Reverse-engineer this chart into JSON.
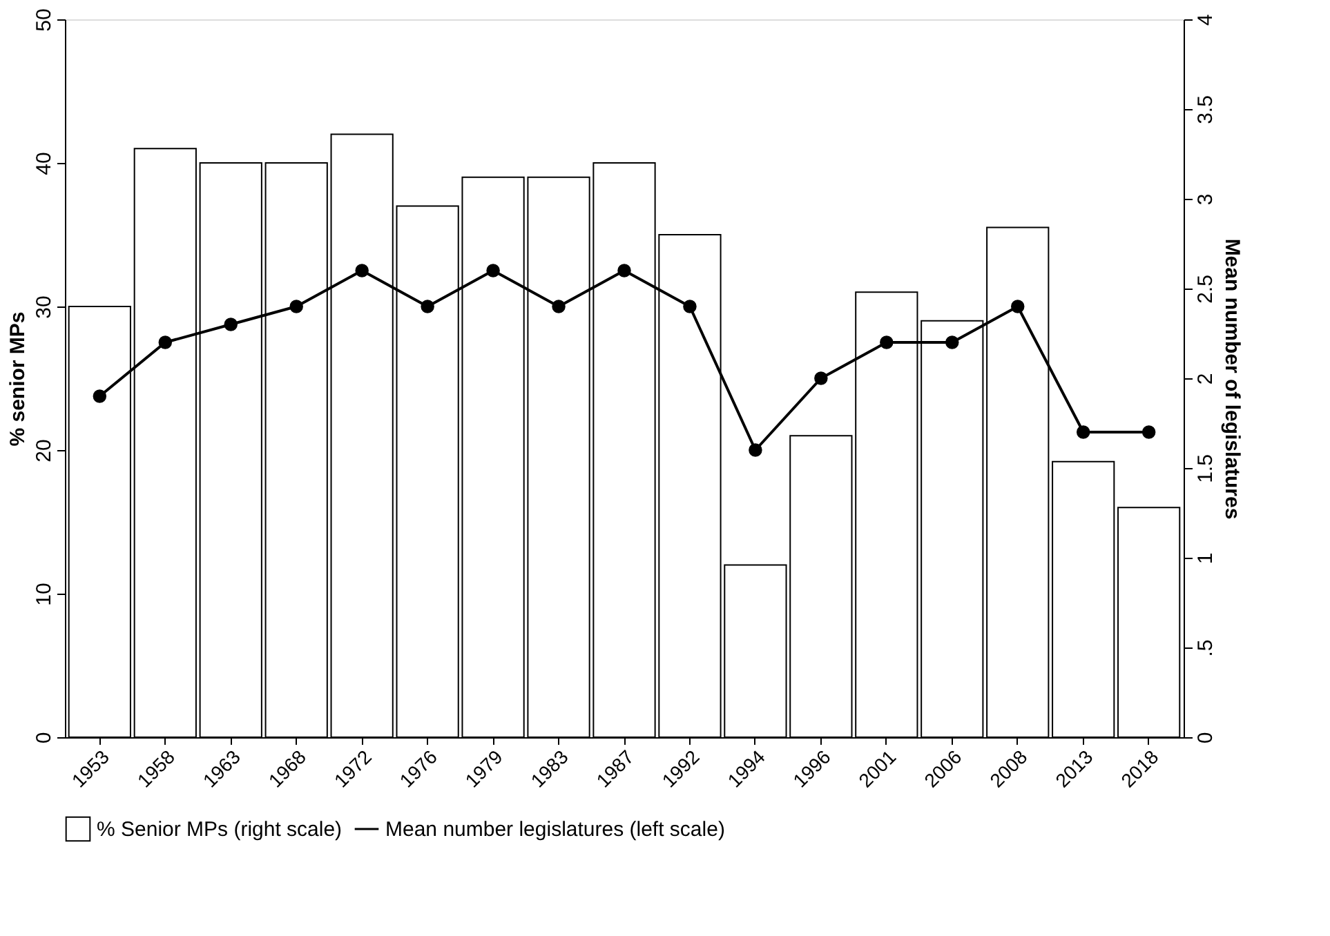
{
  "chart_data": {
    "type": "bar",
    "categories": [
      "1953",
      "1958",
      "1963",
      "1968",
      "1972",
      "1976",
      "1979",
      "1983",
      "1987",
      "1992",
      "1994",
      "1996",
      "2001",
      "2006",
      "2008",
      "2013",
      "2018"
    ],
    "ylabel": "% senior MPs",
    "y2label": "Mean number of legislatures",
    "ylim": [
      0,
      50
    ],
    "yticks": [
      0,
      10,
      20,
      30,
      40,
      50
    ],
    "y2lim": [
      0,
      4
    ],
    "y2ticks": [
      0,
      {
        "value": 0.5,
        "label": ".5"
      },
      1,
      1.5,
      2,
      2.5,
      3,
      3.5,
      4
    ],
    "legend": "bottom",
    "grid": false,
    "marker": "circle",
    "series": [
      {
        "name": "% Senior MPs (right scale)",
        "color": "#ffffff",
        "values": [
          30,
          41,
          40,
          40,
          42,
          37,
          39,
          39,
          40,
          35,
          12,
          21,
          31,
          29,
          35.5,
          19.2,
          16
        ]
      },
      {
        "name": "Mean number legislatures (left scale)",
        "type": "line",
        "axis": "y2",
        "color": "#000000",
        "values": [
          1.9,
          2.2,
          2.3,
          2.4,
          2.6,
          2.4,
          2.6,
          2.4,
          2.6,
          2.4,
          1.6,
          2.0,
          2.2,
          2.2,
          2.4,
          1.7,
          1.7
        ]
      }
    ]
  }
}
